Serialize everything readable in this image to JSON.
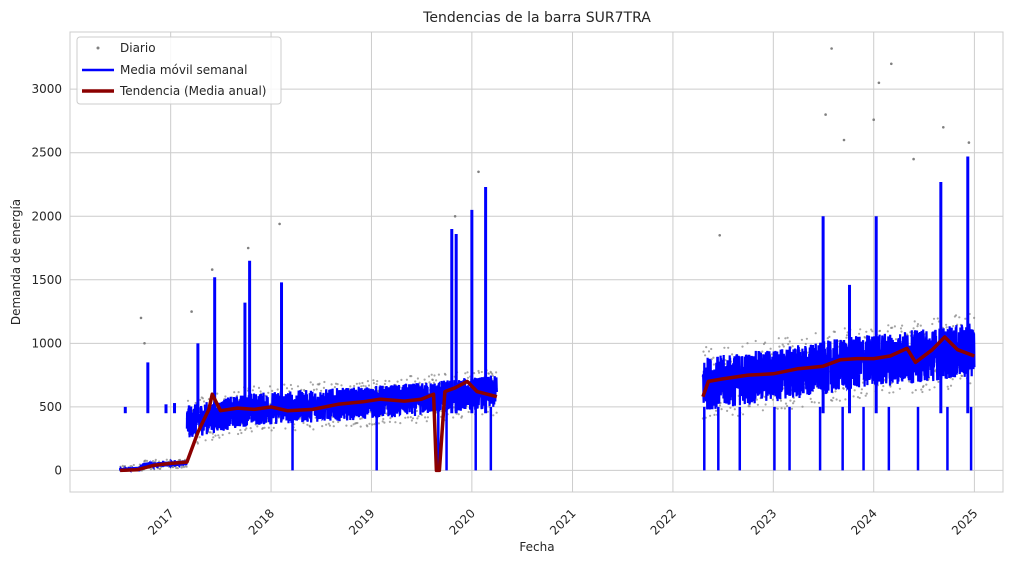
{
  "chart_data": {
    "type": "line",
    "title": "Tendencias de la barra SUR7TRA",
    "xlabel": "Fecha",
    "ylabel": "Demanda de energía",
    "xlim": [
      "2016-01-01",
      "2025-04-15"
    ],
    "ylim": [
      -170,
      3450
    ],
    "x_ticks": [
      "2017",
      "2018",
      "2019",
      "2020",
      "2021",
      "2022",
      "2023",
      "2024",
      "2025"
    ],
    "y_ticks": [
      0,
      500,
      1000,
      1500,
      2000,
      2500,
      3000
    ],
    "grid": true,
    "legend_position": "top-left",
    "series": [
      {
        "name": "Diario",
        "style": "scatter",
        "color": "#808080",
        "segments": [
          {
            "start": "2016-07-01",
            "end": "2017-03-01",
            "base": [
              [
                0.0,
                0
              ],
              [
                0.3,
                10
              ],
              [
                0.35,
                40
              ],
              [
                1.0,
                60
              ]
            ],
            "spread": 30
          },
          {
            "start": "2017-03-01",
            "end": "2020-04-01",
            "base": [
              [
                0.0,
                380
              ],
              [
                0.2,
                480
              ],
              [
                0.5,
                520
              ],
              [
                0.75,
                560
              ],
              [
                0.9,
                600
              ],
              [
                1.0,
                620
              ]
            ],
            "spread": 150
          },
          {
            "start": "2022-04-20",
            "end": "2025-01-01",
            "base": [
              [
                0.0,
                680
              ],
              [
                0.3,
                760
              ],
              [
                0.6,
                860
              ],
              [
                0.8,
                900
              ],
              [
                1.0,
                950
              ]
            ],
            "spread": 230
          }
        ],
        "outliers": [
          {
            "x": "2016-09-28",
            "y": 1000
          },
          {
            "x": "2016-09-15",
            "y": 1200
          },
          {
            "x": "2017-03-18",
            "y": 1250
          },
          {
            "x": "2017-06-01",
            "y": 1580
          },
          {
            "x": "2017-10-10",
            "y": 1750
          },
          {
            "x": "2018-02-01",
            "y": 1940
          },
          {
            "x": "2019-11-01",
            "y": 2000
          },
          {
            "x": "2020-01-25",
            "y": 2350
          },
          {
            "x": "2022-06-20",
            "y": 1850
          },
          {
            "x": "2023-08-01",
            "y": 3320
          },
          {
            "x": "2023-07-10",
            "y": 2800
          },
          {
            "x": "2023-09-15",
            "y": 2600
          },
          {
            "x": "2024-01-20",
            "y": 3050
          },
          {
            "x": "2024-03-05",
            "y": 3200
          },
          {
            "x": "2024-01-01",
            "y": 2760
          },
          {
            "x": "2024-05-25",
            "y": 2450
          },
          {
            "x": "2024-09-10",
            "y": 2700
          },
          {
            "x": "2024-12-12",
            "y": 2580
          }
        ]
      },
      {
        "name": "Media móvil semanal",
        "style": "line",
        "color": "#0000ff",
        "segments": [
          {
            "start": "2016-07-01",
            "end": "2017-03-01",
            "base": [
              [
                0.0,
                0
              ],
              [
                0.3,
                10
              ],
              [
                0.35,
                40
              ],
              [
                1.0,
                60
              ]
            ],
            "spread": 20
          },
          {
            "start": "2017-03-01",
            "end": "2020-04-01",
            "base": [
              [
                0.0,
                380
              ],
              [
                0.2,
                480
              ],
              [
                0.5,
                520
              ],
              [
                0.75,
                560
              ],
              [
                0.9,
                600
              ],
              [
                1.0,
                620
              ]
            ],
            "spread": 130
          },
          {
            "start": "2022-04-20",
            "end": "2025-01-01",
            "base": [
              [
                0.0,
                680
              ],
              [
                0.3,
                760
              ],
              [
                0.6,
                860
              ],
              [
                0.8,
                900
              ],
              [
                1.0,
                950
              ]
            ],
            "spread": 210
          }
        ],
        "spikes": [
          {
            "x": "2016-07-20",
            "y": 500
          },
          {
            "x": "2016-10-10",
            "y": 850
          },
          {
            "x": "2016-12-15",
            "y": 520
          },
          {
            "x": "2017-01-15",
            "y": 530
          },
          {
            "x": "2017-04-10",
            "y": 1000
          },
          {
            "x": "2017-06-10",
            "y": 1520
          },
          {
            "x": "2017-09-28",
            "y": 1320
          },
          {
            "x": "2017-10-15",
            "y": 1650
          },
          {
            "x": "2018-02-08",
            "y": 1480
          },
          {
            "x": "2019-10-20",
            "y": 1900
          },
          {
            "x": "2019-11-05",
            "y": 1860
          },
          {
            "x": "2020-01-01",
            "y": 2050
          },
          {
            "x": "2020-02-20",
            "y": 2230
          },
          {
            "x": "2023-07-01",
            "y": 2000
          },
          {
            "x": "2023-10-05",
            "y": 1460
          },
          {
            "x": "2024-01-10",
            "y": 2000
          },
          {
            "x": "2024-09-01",
            "y": 2270
          },
          {
            "x": "2024-12-08",
            "y": 2470
          }
        ],
        "dips": [
          "2022-04-25",
          "2022-06-15",
          "2022-09-01",
          "2023-01-05",
          "2023-03-01",
          "2023-06-20",
          "2023-09-10",
          "2023-11-25",
          "2024-02-25",
          "2024-06-10",
          "2024-09-25",
          "2024-12-20",
          "2019-09-01",
          "2019-10-01",
          "2020-03-10",
          "2019-01-20",
          "2018-03-20",
          "2020-01-15"
        ]
      },
      {
        "name": "Tendencia (Media anual)",
        "style": "line",
        "color": "#8b0000",
        "points": [
          [
            "2016-07-01",
            0
          ],
          [
            "2016-09-01",
            5
          ],
          [
            "2016-11-01",
            40
          ],
          [
            "2017-01-01",
            55
          ],
          [
            "2017-03-01",
            65
          ],
          [
            "2017-04-10",
            300
          ],
          [
            "2017-05-20",
            480
          ],
          [
            "2017-06-01",
            600
          ],
          [
            "2017-07-01",
            470
          ],
          [
            "2017-09-01",
            490
          ],
          [
            "2017-11-01",
            480
          ],
          [
            "2018-01-01",
            500
          ],
          [
            "2018-03-01",
            470
          ],
          [
            "2018-06-01",
            480
          ],
          [
            "2018-09-01",
            520
          ],
          [
            "2018-12-01",
            540
          ],
          [
            "2019-02-01",
            560
          ],
          [
            "2019-05-01",
            545
          ],
          [
            "2019-07-01",
            560
          ],
          [
            "2019-08-15",
            600
          ],
          [
            "2019-08-25",
            0
          ],
          [
            "2019-09-05",
            0
          ],
          [
            "2019-09-25",
            620
          ],
          [
            "2019-11-01",
            650
          ],
          [
            "2019-12-15",
            700
          ],
          [
            "2020-01-20",
            620
          ],
          [
            "2020-04-01",
            580
          ],
          [
            "2022-04-20",
            580
          ],
          [
            "2022-05-10",
            700
          ],
          [
            "2022-07-01",
            720
          ],
          [
            "2022-10-01",
            750
          ],
          [
            "2023-01-01",
            760
          ],
          [
            "2023-04-01",
            800
          ],
          [
            "2023-07-01",
            820
          ],
          [
            "2023-09-01",
            870
          ],
          [
            "2023-11-01",
            880
          ],
          [
            "2024-01-01",
            880
          ],
          [
            "2024-03-01",
            900
          ],
          [
            "2024-05-01",
            960
          ],
          [
            "2024-06-01",
            850
          ],
          [
            "2024-08-01",
            950
          ],
          [
            "2024-09-15",
            1050
          ],
          [
            "2024-11-01",
            950
          ],
          [
            "2025-01-01",
            900
          ]
        ]
      }
    ]
  }
}
